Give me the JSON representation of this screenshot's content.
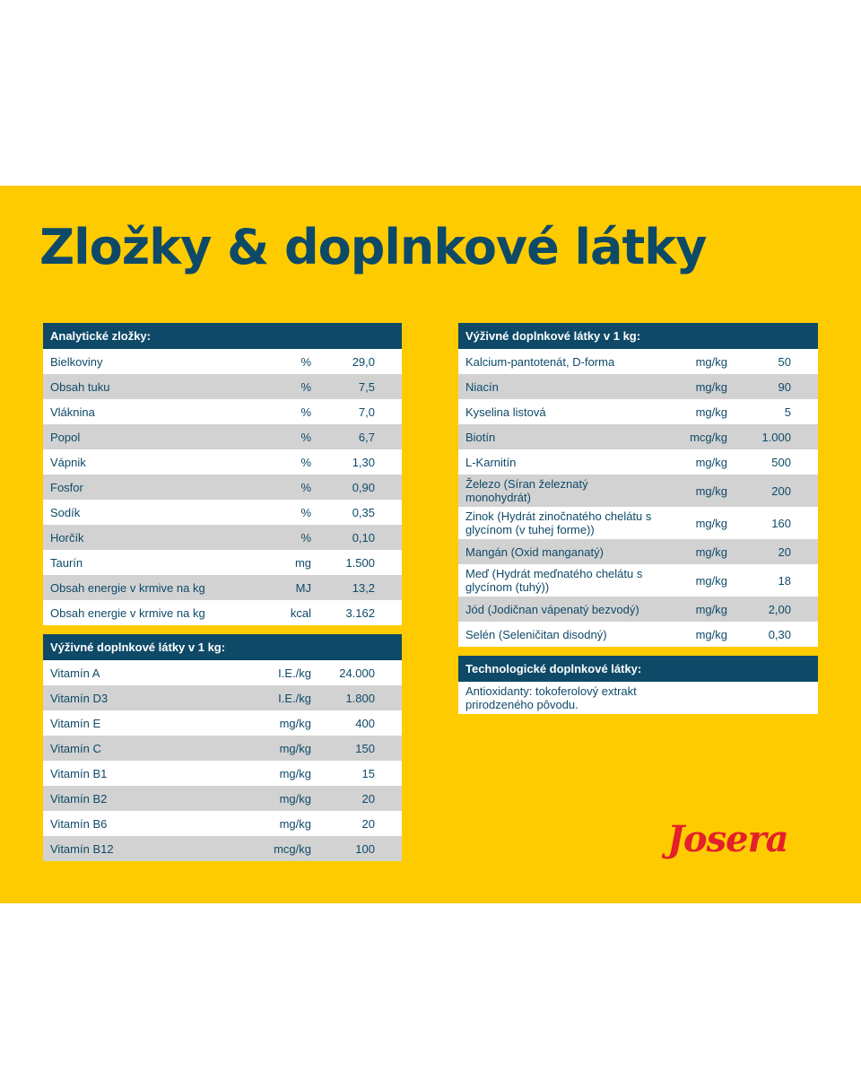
{
  "title": "Zložky & doplnkové látky",
  "tables": [
    {
      "header": "Analytické zložky:",
      "rows": [
        [
          "Bielkoviny",
          "%",
          "29,0"
        ],
        [
          "Obsah tuku",
          "%",
          "7,5"
        ],
        [
          "Vláknina",
          "%",
          "7,0"
        ],
        [
          "Popol",
          "%",
          "6,7"
        ],
        [
          "Vápnik",
          "%",
          "1,30"
        ],
        [
          "Fosfor",
          "%",
          "0,90"
        ],
        [
          "Sodík",
          "%",
          "0,35"
        ],
        [
          "Horčík",
          "%",
          "0,10"
        ],
        [
          "Taurín",
          "mg",
          "1.500"
        ],
        [
          "Obsah energie v krmive na kg",
          "MJ",
          "13,2"
        ],
        [
          "Obsah energie v krmive na kg",
          "kcal",
          "3.162"
        ]
      ]
    },
    {
      "header": "Výživné doplnkové látky v 1 kg:",
      "rows": [
        [
          "Vitamín A",
          "I.E./kg",
          "24.000"
        ],
        [
          "Vitamín D3",
          "I.E./kg",
          "1.800"
        ],
        [
          "Vitamín E",
          "mg/kg",
          "400"
        ],
        [
          "Vitamín C",
          "mg/kg",
          "150"
        ],
        [
          "Vitamín B1",
          "mg/kg",
          "15"
        ],
        [
          "Vitamín B2",
          "mg/kg",
          "20"
        ],
        [
          "Vitamín B6",
          "mg/kg",
          "20"
        ],
        [
          "Vitamín B12",
          "mcg/kg",
          "100"
        ]
      ]
    },
    {
      "header": "Výživné doplnkové látky v 1 kg:",
      "rows": [
        [
          "Kalcium-pantotenát, D-forma",
          "mg/kg",
          "50"
        ],
        [
          "Niacín",
          "mg/kg",
          "90"
        ],
        [
          "Kyselina listová",
          "mg/kg",
          "5"
        ],
        [
          "Biotín",
          "mcg/kg",
          "1.000"
        ],
        [
          "L-Karnitín",
          "mg/kg",
          "500"
        ],
        [
          "Železo (Síran železnatý monohydrát)",
          "mg/kg",
          "200"
        ],
        [
          "Zinok (Hydrát zinočnatého chelátu s glycínom (v tuhej forme))",
          "mg/kg",
          "160"
        ],
        [
          "Mangán (Oxid manganatý)",
          "mg/kg",
          "20"
        ],
        [
          "Meď (Hydrát meďnatého chelátu s glycínom (tuhý))",
          "mg/kg",
          "18"
        ],
        [
          "Jód (Jodičnan vápenatý bezvodý)",
          "mg/kg",
          "2,00"
        ],
        [
          "Selén (Seleničitan disodný)",
          "mg/kg",
          "0,30"
        ]
      ]
    },
    {
      "header": "Technologické doplnkové látky:",
      "rows": [
        [
          "Antioxidanty: tokoferolový extrakt prirodzeného pôvodu."
        ]
      ]
    }
  ],
  "logo": "Josera"
}
